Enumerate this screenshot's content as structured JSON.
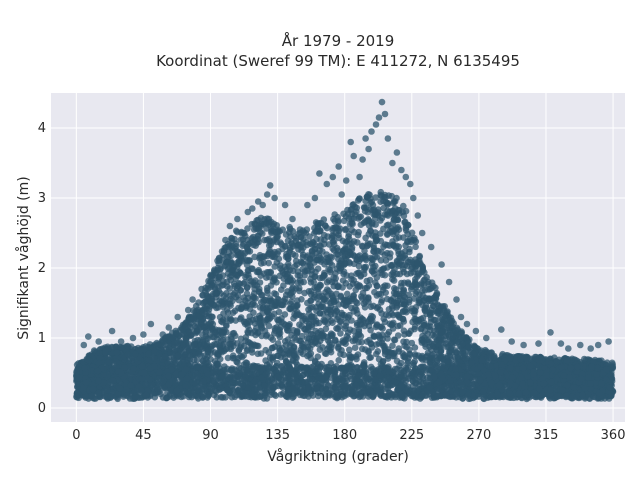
{
  "chart_data": {
    "type": "scatter",
    "title": [
      "År 1979 - 2019",
      "Koordinat (Sweref 99 TM): E 411272, N 6135495"
    ],
    "xlabel": "Vågriktning (grader)",
    "ylabel": "Signifikant våghöjd (m)",
    "xlim": [
      -17,
      368
    ],
    "ylim": [
      -0.2,
      4.5
    ],
    "x_ticks": [
      0,
      45,
      90,
      135,
      180,
      225,
      270,
      315,
      360
    ],
    "y_ticks": [
      0,
      1,
      2,
      3,
      4
    ],
    "grid": true,
    "background": "#e8e8f0",
    "point_color": "#2e566e",
    "envelope_upper": [
      [
        0,
        0.62
      ],
      [
        10,
        0.78
      ],
      [
        20,
        0.88
      ],
      [
        30,
        0.9
      ],
      [
        45,
        0.88
      ],
      [
        55,
        0.95
      ],
      [
        70,
        1.15
      ],
      [
        80,
        1.45
      ],
      [
        90,
        1.9
      ],
      [
        100,
        2.35
      ],
      [
        110,
        2.6
      ],
      [
        120,
        2.7
      ],
      [
        130,
        2.75
      ],
      [
        140,
        2.6
      ],
      [
        150,
        2.55
      ],
      [
        160,
        2.65
      ],
      [
        170,
        2.75
      ],
      [
        180,
        2.8
      ],
      [
        190,
        3.0
      ],
      [
        200,
        3.1
      ],
      [
        210,
        3.1
      ],
      [
        220,
        2.9
      ],
      [
        225,
        2.6
      ],
      [
        230,
        2.2
      ],
      [
        240,
        1.75
      ],
      [
        250,
        1.35
      ],
      [
        260,
        1.05
      ],
      [
        270,
        0.85
      ],
      [
        290,
        0.75
      ],
      [
        320,
        0.72
      ],
      [
        345,
        0.7
      ],
      [
        360,
        0.65
      ]
    ],
    "envelope_lower": 0.13,
    "outliers": [
      [
        5,
        0.9
      ],
      [
        8,
        1.02
      ],
      [
        12,
        0.82
      ],
      [
        15,
        0.95
      ],
      [
        24,
        1.1
      ],
      [
        30,
        0.95
      ],
      [
        38,
        1.0
      ],
      [
        45,
        1.05
      ],
      [
        50,
        1.2
      ],
      [
        58,
        1.05
      ],
      [
        62,
        1.15
      ],
      [
        68,
        1.3
      ],
      [
        75,
        1.4
      ],
      [
        78,
        1.55
      ],
      [
        84,
        1.7
      ],
      [
        88,
        1.6
      ],
      [
        95,
        2.0
      ],
      [
        100,
        2.4
      ],
      [
        103,
        2.6
      ],
      [
        108,
        2.7
      ],
      [
        115,
        2.8
      ],
      [
        118,
        2.85
      ],
      [
        122,
        2.95
      ],
      [
        125,
        2.9
      ],
      [
        128,
        3.05
      ],
      [
        130,
        3.18
      ],
      [
        133,
        3.0
      ],
      [
        140,
        2.9
      ],
      [
        145,
        2.7
      ],
      [
        150,
        2.55
      ],
      [
        155,
        2.9
      ],
      [
        160,
        3.0
      ],
      [
        163,
        3.35
      ],
      [
        168,
        3.2
      ],
      [
        172,
        3.3
      ],
      [
        176,
        3.45
      ],
      [
        178,
        3.05
      ],
      [
        181,
        3.25
      ],
      [
        184,
        3.8
      ],
      [
        186,
        3.6
      ],
      [
        190,
        3.3
      ],
      [
        192,
        3.55
      ],
      [
        194,
        3.85
      ],
      [
        196,
        3.7
      ],
      [
        198,
        3.95
      ],
      [
        201,
        4.05
      ],
      [
        203,
        4.15
      ],
      [
        205,
        4.37
      ],
      [
        207,
        4.2
      ],
      [
        209,
        3.85
      ],
      [
        212,
        3.5
      ],
      [
        215,
        3.65
      ],
      [
        218,
        3.4
      ],
      [
        221,
        3.3
      ],
      [
        224,
        3.2
      ],
      [
        226,
        3.0
      ],
      [
        229,
        2.75
      ],
      [
        232,
        2.5
      ],
      [
        238,
        2.3
      ],
      [
        245,
        2.05
      ],
      [
        250,
        1.8
      ],
      [
        255,
        1.55
      ],
      [
        258,
        1.3
      ],
      [
        262,
        1.2
      ],
      [
        268,
        1.1
      ],
      [
        275,
        1.0
      ],
      [
        285,
        1.12
      ],
      [
        292,
        0.95
      ],
      [
        300,
        0.9
      ],
      [
        310,
        0.92
      ],
      [
        318,
        1.08
      ],
      [
        325,
        0.92
      ],
      [
        330,
        0.85
      ],
      [
        338,
        0.9
      ],
      [
        345,
        0.85
      ],
      [
        350,
        0.9
      ],
      [
        357,
        0.95
      ]
    ]
  }
}
